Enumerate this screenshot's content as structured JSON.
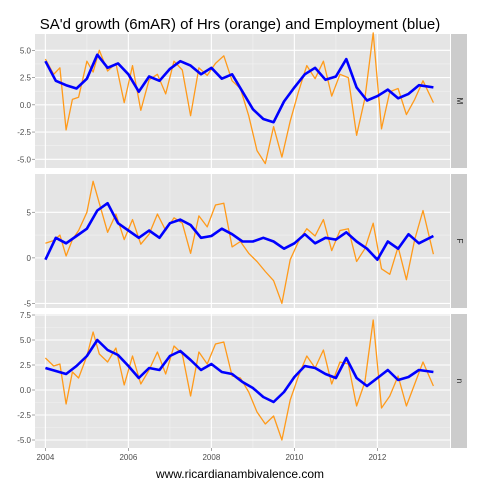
{
  "chart_data": {
    "type": "line",
    "title": "SA'd growth (6mAR) of Hrs (orange) and Employment (blue)",
    "xlabel": "www.ricardianambivalence.com",
    "ylabel": "",
    "x_ticks": [
      "2004",
      "2006",
      "2008",
      "2010",
      "2012"
    ],
    "xlim": [
      2003.75,
      2013.75
    ],
    "grid": true,
    "colors": {
      "hrs": "#ff9a1a",
      "employment": "#0000ff",
      "panel_bg": "#e5e5e5",
      "strip_bg": "#cccccc"
    },
    "panels": [
      {
        "strip": "M",
        "ylim": [
          -5.8,
          6.5
        ],
        "y_ticks": [
          -5.0,
          -2.5,
          0.0,
          2.5,
          5.0
        ],
        "y_tick_labels": [
          "-5.0",
          "-2.5",
          "0.0",
          "2.5",
          "5.0"
        ],
        "employment": {
          "x": [
            2004.0,
            2004.25,
            2004.5,
            2004.75,
            2005.0,
            2005.25,
            2005.5,
            2005.75,
            2006.0,
            2006.25,
            2006.5,
            2006.75,
            2007.0,
            2007.25,
            2007.5,
            2007.75,
            2008.0,
            2008.25,
            2008.5,
            2008.75,
            2009.0,
            2009.25,
            2009.5,
            2009.75,
            2010.0,
            2010.25,
            2010.5,
            2010.75,
            2011.0,
            2011.25,
            2011.5,
            2011.75,
            2012.0,
            2012.25,
            2012.5,
            2012.75,
            2013.0,
            2013.35
          ],
          "values": [
            4.0,
            2.2,
            1.8,
            1.5,
            2.4,
            4.6,
            3.4,
            3.8,
            2.8,
            1.2,
            2.6,
            2.2,
            3.3,
            4.0,
            3.6,
            2.8,
            3.4,
            2.4,
            2.8,
            1.2,
            -0.4,
            -1.3,
            -1.6,
            0.3,
            1.6,
            2.8,
            3.4,
            2.3,
            2.6,
            4.2,
            1.6,
            0.4,
            0.8,
            1.4,
            0.6,
            1.0,
            1.8,
            1.6
          ]
        },
        "hrs": {
          "x": [
            2004.0,
            2004.2,
            2004.35,
            2004.5,
            2004.65,
            2004.8,
            2005.0,
            2005.15,
            2005.3,
            2005.5,
            2005.7,
            2005.9,
            2006.1,
            2006.3,
            2006.5,
            2006.7,
            2006.9,
            2007.1,
            2007.3,
            2007.5,
            2007.7,
            2007.9,
            2008.1,
            2008.3,
            2008.5,
            2008.7,
            2008.9,
            2009.1,
            2009.3,
            2009.5,
            2009.7,
            2009.9,
            2010.1,
            2010.3,
            2010.5,
            2010.7,
            2010.9,
            2011.1,
            2011.3,
            2011.5,
            2011.7,
            2011.9,
            2012.1,
            2012.3,
            2012.5,
            2012.7,
            2012.9,
            2013.1,
            2013.35
          ],
          "values": [
            4.2,
            2.8,
            3.4,
            -2.3,
            0.5,
            0.7,
            4.0,
            3.0,
            5.0,
            3.1,
            3.8,
            0.2,
            3.6,
            -0.5,
            2.3,
            2.8,
            1.0,
            4.0,
            3.2,
            -1.0,
            3.4,
            2.7,
            3.8,
            4.5,
            2.2,
            1.5,
            -1.0,
            -4.2,
            -5.4,
            -2.0,
            -4.8,
            -1.5,
            1.2,
            3.6,
            2.4,
            4.0,
            0.8,
            2.8,
            2.5,
            -2.8,
            0.6,
            6.6,
            -2.2,
            1.2,
            1.5,
            -0.9,
            0.5,
            2.2,
            0.2
          ]
        }
      },
      {
        "strip": "F",
        "ylim": [
          -5.5,
          9.2
        ],
        "y_ticks": [
          -5,
          0,
          5
        ],
        "y_tick_labels": [
          "-5",
          "0",
          "5"
        ],
        "employment": {
          "x": [
            2004.0,
            2004.25,
            2004.5,
            2004.75,
            2005.0,
            2005.25,
            2005.5,
            2005.75,
            2006.0,
            2006.25,
            2006.5,
            2006.75,
            2007.0,
            2007.25,
            2007.5,
            2007.75,
            2008.0,
            2008.25,
            2008.5,
            2008.75,
            2009.0,
            2009.25,
            2009.5,
            2009.75,
            2010.0,
            2010.25,
            2010.5,
            2010.75,
            2011.0,
            2011.25,
            2011.5,
            2011.75,
            2012.0,
            2012.25,
            2012.5,
            2012.75,
            2013.0,
            2013.35
          ],
          "values": [
            -0.2,
            2.2,
            1.6,
            2.4,
            3.2,
            5.2,
            6.0,
            3.8,
            3.0,
            2.2,
            3.0,
            2.2,
            3.8,
            4.2,
            3.6,
            2.2,
            2.4,
            3.2,
            2.6,
            1.8,
            1.8,
            2.2,
            1.8,
            1.0,
            1.6,
            2.6,
            1.6,
            2.2,
            2.0,
            2.8,
            1.8,
            1.0,
            -0.2,
            1.8,
            1.0,
            2.6,
            1.6,
            2.4
          ]
        },
        "hrs": {
          "x": [
            2004.0,
            2004.2,
            2004.35,
            2004.5,
            2004.65,
            2004.8,
            2005.0,
            2005.15,
            2005.3,
            2005.5,
            2005.7,
            2005.9,
            2006.1,
            2006.3,
            2006.5,
            2006.7,
            2006.9,
            2007.1,
            2007.3,
            2007.5,
            2007.7,
            2007.9,
            2008.1,
            2008.3,
            2008.5,
            2008.7,
            2008.9,
            2009.1,
            2009.3,
            2009.5,
            2009.7,
            2009.9,
            2010.1,
            2010.3,
            2010.5,
            2010.7,
            2010.9,
            2011.1,
            2011.3,
            2011.5,
            2011.7,
            2011.9,
            2012.1,
            2012.3,
            2012.5,
            2012.7,
            2012.9,
            2013.1,
            2013.35
          ],
          "values": [
            1.6,
            1.9,
            2.5,
            0.2,
            2.0,
            3.0,
            5.0,
            8.4,
            6.0,
            2.8,
            4.8,
            2.0,
            4.2,
            1.5,
            2.6,
            4.8,
            3.0,
            4.4,
            3.8,
            0.5,
            4.6,
            3.4,
            5.8,
            6.0,
            1.2,
            1.8,
            0.5,
            -0.4,
            -1.5,
            -2.5,
            -5.0,
            -0.2,
            1.8,
            3.2,
            2.4,
            4.2,
            0.8,
            3.0,
            3.2,
            -0.4,
            1.0,
            3.8,
            -1.2,
            -1.8,
            1.2,
            -2.4,
            2.0,
            5.2,
            0.4
          ]
        }
      },
      {
        "strip": "n",
        "ylim": [
          -5.8,
          7.6
        ],
        "y_ticks": [
          -5.0,
          -2.5,
          0.0,
          2.5,
          5.0,
          7.5
        ],
        "y_tick_labels": [
          "-5.0",
          "-2.5",
          "0.0",
          "2.5",
          "5.0",
          "7.5"
        ],
        "employment": {
          "x": [
            2004.0,
            2004.25,
            2004.5,
            2004.75,
            2005.0,
            2005.25,
            2005.5,
            2005.75,
            2006.0,
            2006.25,
            2006.5,
            2006.75,
            2007.0,
            2007.25,
            2007.5,
            2007.75,
            2008.0,
            2008.25,
            2008.5,
            2008.75,
            2009.0,
            2009.25,
            2009.5,
            2009.75,
            2010.0,
            2010.25,
            2010.5,
            2010.75,
            2011.0,
            2011.25,
            2011.5,
            2011.75,
            2012.0,
            2012.25,
            2012.5,
            2012.75,
            2013.0,
            2013.35
          ],
          "values": [
            2.2,
            1.9,
            1.6,
            2.4,
            3.4,
            5.0,
            4.0,
            3.5,
            2.4,
            1.2,
            2.2,
            2.0,
            3.4,
            3.9,
            3.0,
            2.0,
            2.6,
            1.8,
            1.6,
            0.8,
            0.2,
            -0.7,
            -1.2,
            -0.2,
            1.3,
            2.4,
            2.2,
            1.6,
            1.2,
            3.2,
            1.2,
            0.4,
            1.2,
            2.0,
            1.0,
            1.3,
            2.0,
            1.8
          ]
        },
        "hrs": {
          "x": [
            2004.0,
            2004.2,
            2004.35,
            2004.5,
            2004.65,
            2004.8,
            2005.0,
            2005.15,
            2005.3,
            2005.5,
            2005.7,
            2005.9,
            2006.1,
            2006.3,
            2006.5,
            2006.7,
            2006.9,
            2007.1,
            2007.3,
            2007.5,
            2007.7,
            2007.9,
            2008.1,
            2008.3,
            2008.5,
            2008.7,
            2008.9,
            2009.1,
            2009.3,
            2009.5,
            2009.7,
            2009.9,
            2010.1,
            2010.3,
            2010.5,
            2010.7,
            2010.9,
            2011.1,
            2011.3,
            2011.5,
            2011.7,
            2011.9,
            2012.1,
            2012.3,
            2012.5,
            2012.7,
            2012.9,
            2013.1,
            2013.35
          ],
          "values": [
            3.2,
            2.4,
            2.6,
            -1.4,
            1.8,
            1.2,
            3.4,
            5.8,
            3.6,
            2.8,
            4.2,
            0.5,
            3.4,
            0.6,
            2.0,
            3.8,
            1.6,
            4.4,
            3.6,
            -0.6,
            3.8,
            2.6,
            4.6,
            4.8,
            1.4,
            1.2,
            -0.2,
            -2.2,
            -3.4,
            -2.6,
            -5.0,
            -1.0,
            1.4,
            3.4,
            2.2,
            4.0,
            0.6,
            2.8,
            2.6,
            -1.6,
            0.8,
            7.0,
            -1.8,
            -0.6,
            1.4,
            -1.6,
            0.6,
            2.8,
            0.4
          ]
        }
      }
    ]
  }
}
